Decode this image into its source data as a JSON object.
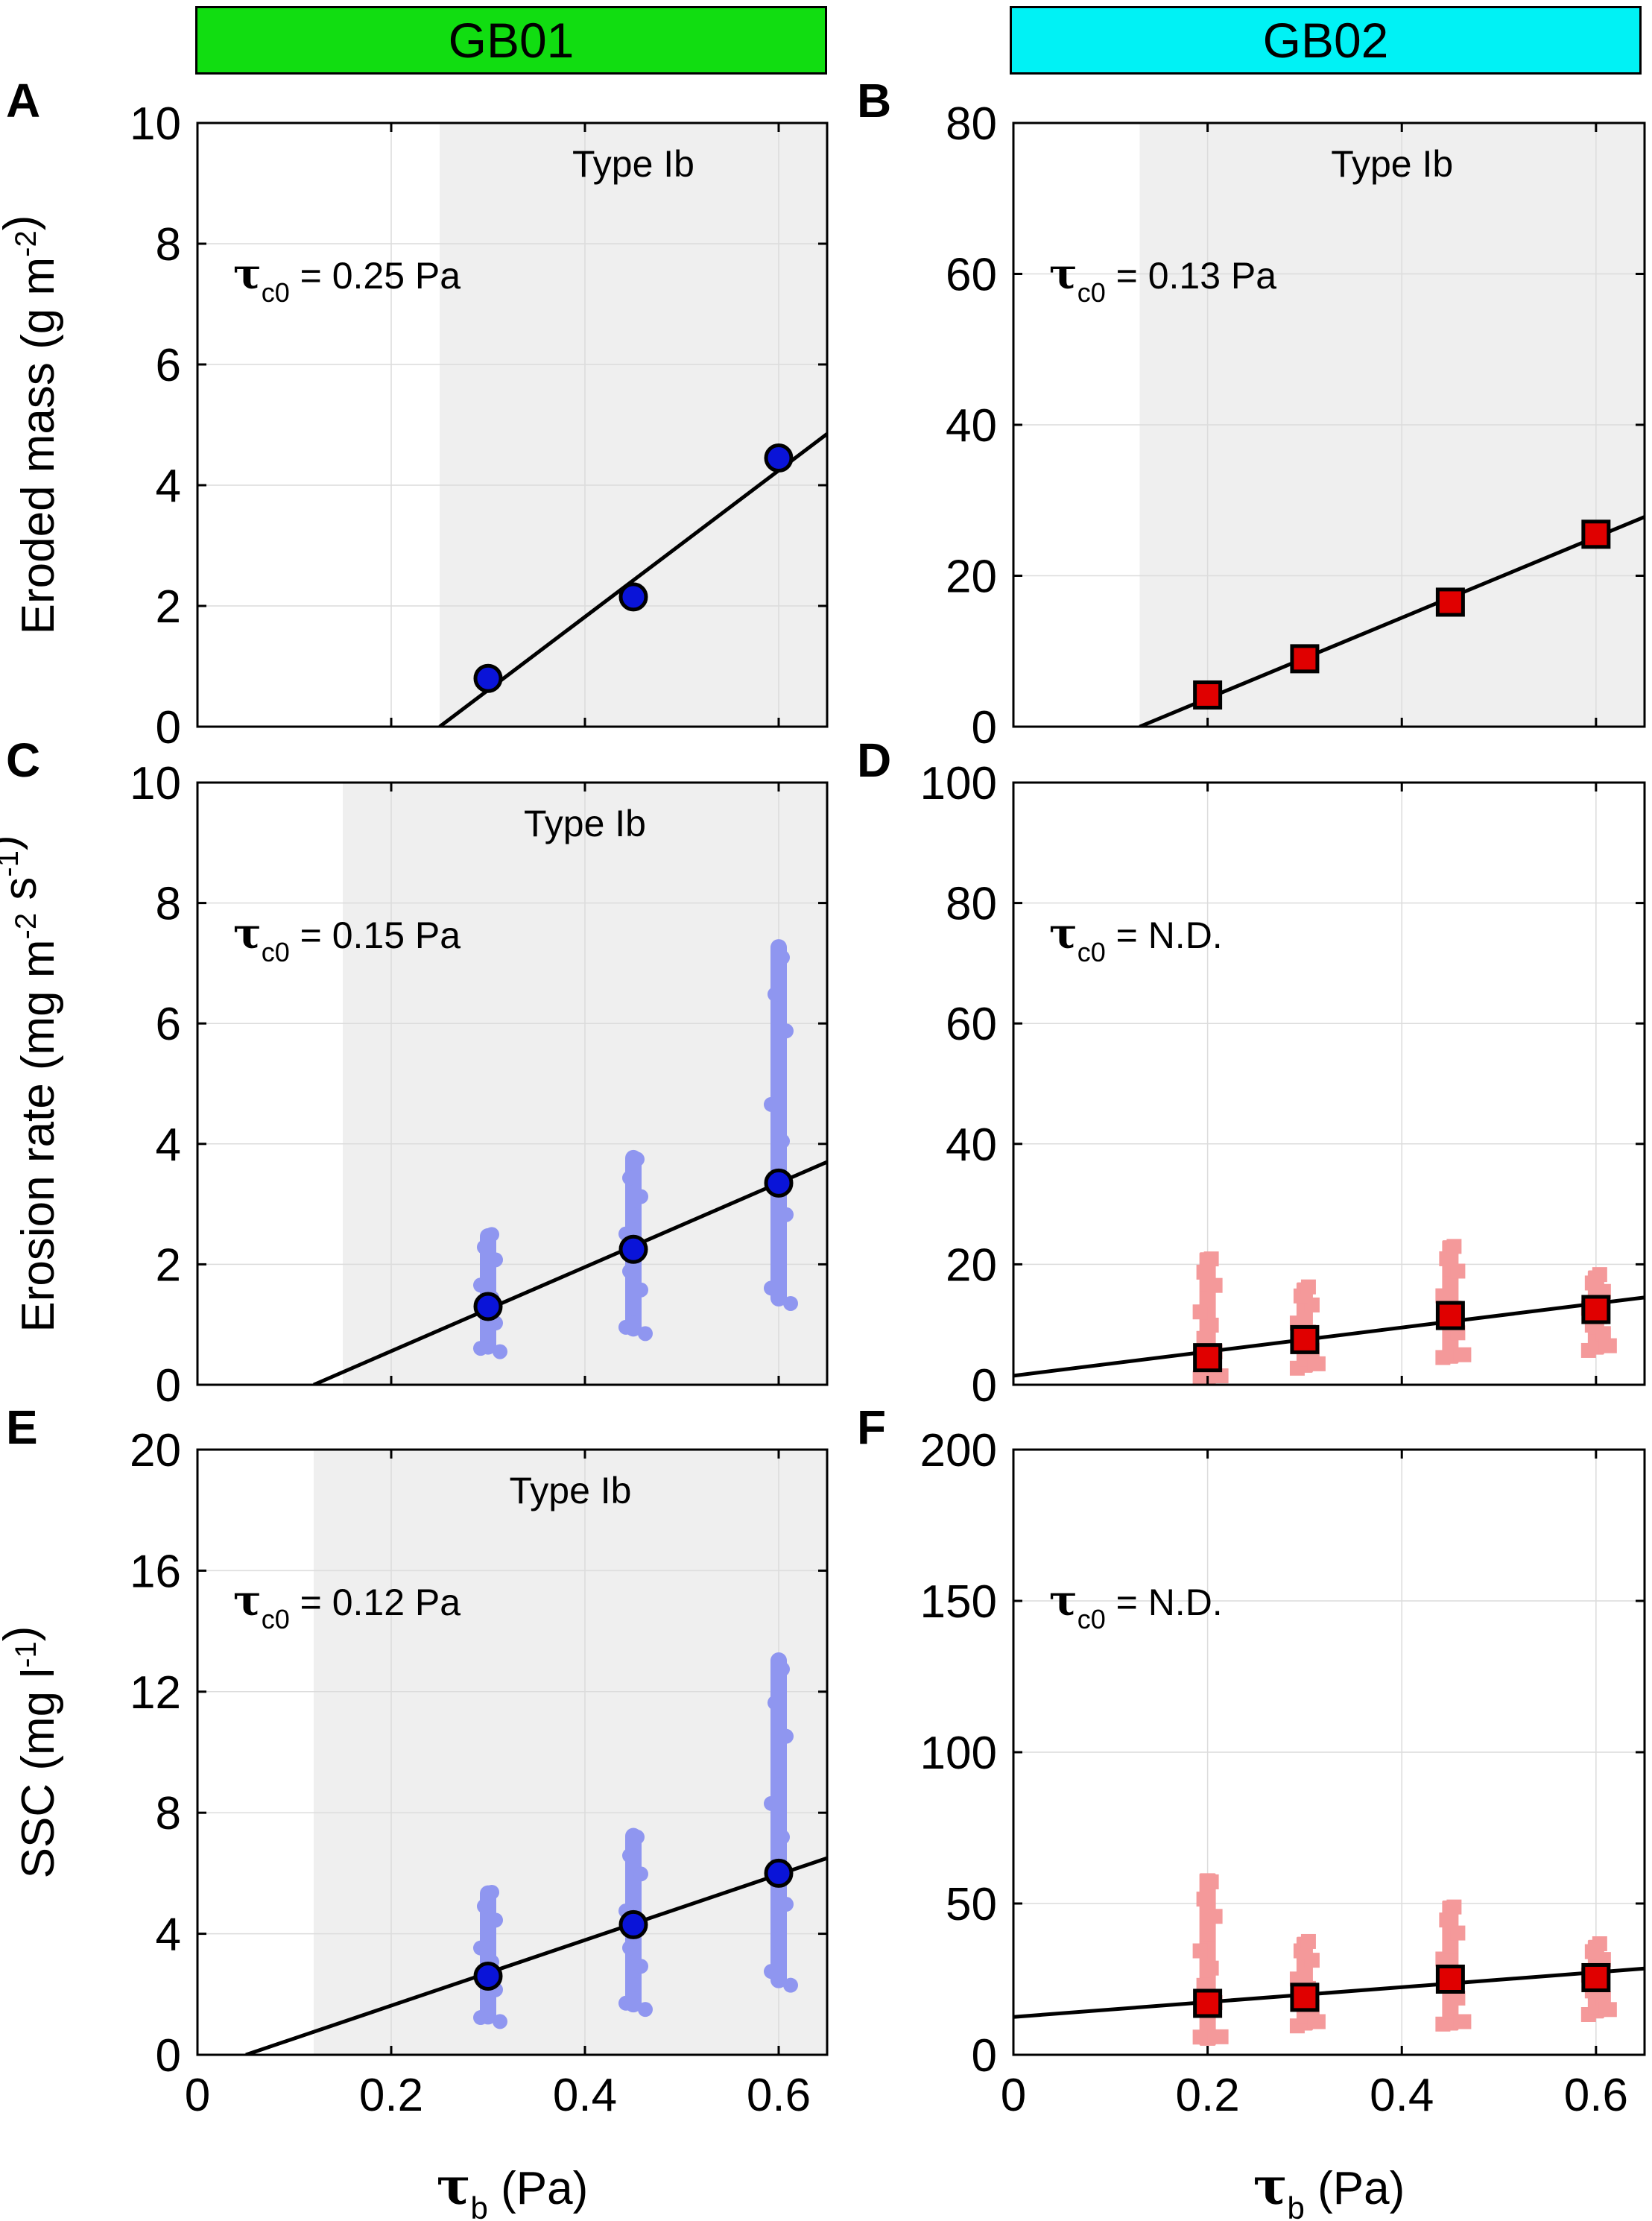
{
  "columns": [
    {
      "id": "gb01",
      "label": "GB01",
      "color": "#11dd11"
    },
    {
      "id": "gb02",
      "label": "GB02",
      "color": "#00f2f5"
    }
  ],
  "tau_sub": "c0",
  "xlabel": {
    "symbol": "τ",
    "sub": "b",
    "unit": "(Pa)"
  },
  "chart_data": [
    {
      "panel": "A",
      "type": "scatter",
      "site": "GB01",
      "ylabel": "Eroded mass (g m-2)",
      "xlim": [
        0,
        0.65
      ],
      "ylim": [
        0,
        10
      ],
      "xticks": [
        0,
        0.2,
        0.4,
        0.6
      ],
      "yticks": [
        0,
        2,
        4,
        6,
        8,
        10
      ],
      "xtick_labels": [
        "0",
        "0.2",
        "0.4",
        "0.6"
      ],
      "shade_from": 0.25,
      "type_label": "Type Ib",
      "tau_value": "= 0.25 Pa",
      "marker": "circle",
      "points": [
        {
          "x": 0.3,
          "y": 0.8
        },
        {
          "x": 0.45,
          "y": 2.15
        },
        {
          "x": 0.6,
          "y": 4.45
        }
      ],
      "fit": {
        "x0": 0.25,
        "y0": 0,
        "x1": 0.65,
        "y1": 4.85
      },
      "scatter": []
    },
    {
      "panel": "B",
      "type": "scatter",
      "site": "GB02",
      "ylabel": "",
      "xlim": [
        0,
        0.65
      ],
      "ylim": [
        0,
        80
      ],
      "xticks": [
        0,
        0.2,
        0.4,
        0.6
      ],
      "yticks": [
        0,
        20,
        40,
        60,
        80
      ],
      "xtick_labels": [
        "0",
        "0.2",
        "0.4",
        "0.6"
      ],
      "shade_from": 0.13,
      "type_label": "Type Ib",
      "tau_value": "= 0.13 Pa",
      "marker": "square",
      "points": [
        {
          "x": 0.2,
          "y": 4.2
        },
        {
          "x": 0.3,
          "y": 9
        },
        {
          "x": 0.45,
          "y": 16.5
        },
        {
          "x": 0.6,
          "y": 25.5
        }
      ],
      "fit": {
        "x0": 0.13,
        "y0": 0,
        "x1": 0.65,
        "y1": 27.8
      },
      "scatter": []
    },
    {
      "panel": "C",
      "type": "scatter",
      "site": "GB01",
      "ylabel": "Erosion rate (mg m-2 s-1)",
      "xlim": [
        0,
        0.65
      ],
      "ylim": [
        0,
        10
      ],
      "xticks": [
        0,
        0.2,
        0.4,
        0.6
      ],
      "yticks": [
        0,
        2,
        4,
        6,
        8,
        10
      ],
      "xtick_labels": [
        "0",
        "0.2",
        "0.4",
        "0.6"
      ],
      "shade_from": 0.15,
      "type_label": "Type Ib",
      "tau_value": "= 0.15 Pa",
      "marker": "circle",
      "points": [
        {
          "x": 0.3,
          "y": 1.3
        },
        {
          "x": 0.45,
          "y": 2.25
        },
        {
          "x": 0.6,
          "y": 3.35
        }
      ],
      "fit": {
        "x0": 0.12,
        "y0": 0,
        "x1": 0.65,
        "y1": 3.7
      },
      "scatter": [
        {
          "x": 0.3,
          "ymin": 0.5,
          "ymax": 2.6
        },
        {
          "x": 0.45,
          "ymin": 0.8,
          "ymax": 3.9
        },
        {
          "x": 0.6,
          "ymin": 1.3,
          "ymax": 7.4
        }
      ]
    },
    {
      "panel": "D",
      "type": "scatter",
      "site": "GB02",
      "ylabel": "",
      "xlim": [
        0,
        0.65
      ],
      "ylim": [
        0,
        100
      ],
      "xticks": [
        0,
        0.2,
        0.4,
        0.6
      ],
      "yticks": [
        0,
        20,
        40,
        60,
        80,
        100
      ],
      "xtick_labels": [
        "0",
        "0.2",
        "0.4",
        "0.6"
      ],
      "shade_from": null,
      "type_label": "",
      "tau_value": "= N.D.",
      "marker": "square",
      "points": [
        {
          "x": 0.2,
          "y": 4.5
        },
        {
          "x": 0.3,
          "y": 7.5
        },
        {
          "x": 0.45,
          "y": 11.5
        },
        {
          "x": 0.6,
          "y": 12.5
        }
      ],
      "fit": {
        "x0": 0,
        "y0": 1.5,
        "x1": 0.65,
        "y1": 14.5
      },
      "scatter": [
        {
          "x": 0.2,
          "ymin": 0,
          "ymax": 22
        },
        {
          "x": 0.3,
          "ymin": 2,
          "ymax": 17
        },
        {
          "x": 0.45,
          "ymin": 3.5,
          "ymax": 24
        },
        {
          "x": 0.6,
          "ymin": 5,
          "ymax": 19
        }
      ]
    },
    {
      "panel": "E",
      "type": "scatter",
      "site": "GB01",
      "ylabel": "SSC (mg l-1)",
      "xlim": [
        0,
        0.65
      ],
      "ylim": [
        0,
        20
      ],
      "xticks": [
        0,
        0.2,
        0.4,
        0.6
      ],
      "yticks": [
        0,
        4,
        8,
        12,
        16,
        20
      ],
      "xtick_labels": [
        "0",
        "0.2",
        "0.4",
        "0.6"
      ],
      "shade_from": 0.12,
      "type_label": "Type Ib",
      "tau_value": "= 0.12 Pa",
      "marker": "circle",
      "points": [
        {
          "x": 0.3,
          "y": 2.6
        },
        {
          "x": 0.45,
          "y": 4.3
        },
        {
          "x": 0.6,
          "y": 6.0
        }
      ],
      "fit": {
        "x0": 0.05,
        "y0": 0,
        "x1": 0.65,
        "y1": 6.5
      },
      "scatter": [
        {
          "x": 0.3,
          "ymin": 1.0,
          "ymax": 5.6
        },
        {
          "x": 0.45,
          "ymin": 1.4,
          "ymax": 7.5
        },
        {
          "x": 0.6,
          "ymin": 2.2,
          "ymax": 13.3
        }
      ]
    },
    {
      "panel": "F",
      "type": "scatter",
      "site": "GB02",
      "ylabel": "",
      "xlim": [
        0,
        0.65
      ],
      "ylim": [
        0,
        200
      ],
      "xticks": [
        0,
        0.2,
        0.4,
        0.6
      ],
      "yticks": [
        0,
        50,
        100,
        150,
        200
      ],
      "xtick_labels": [
        "0",
        "0.2",
        "0.4",
        "0.6"
      ],
      "shade_from": null,
      "type_label": "",
      "tau_value": "= N.D.",
      "marker": "square",
      "points": [
        {
          "x": 0.2,
          "y": 17
        },
        {
          "x": 0.3,
          "y": 19
        },
        {
          "x": 0.45,
          "y": 25
        },
        {
          "x": 0.6,
          "y": 25.5
        }
      ],
      "fit": {
        "x0": 0,
        "y0": 12.5,
        "x1": 0.65,
        "y1": 28.5
      },
      "scatter": [
        {
          "x": 0.2,
          "ymin": 3,
          "ymax": 60
        },
        {
          "x": 0.3,
          "ymin": 8,
          "ymax": 39
        },
        {
          "x": 0.45,
          "ymin": 8,
          "ymax": 51
        },
        {
          "x": 0.6,
          "ymin": 12,
          "ymax": 38
        }
      ]
    }
  ]
}
